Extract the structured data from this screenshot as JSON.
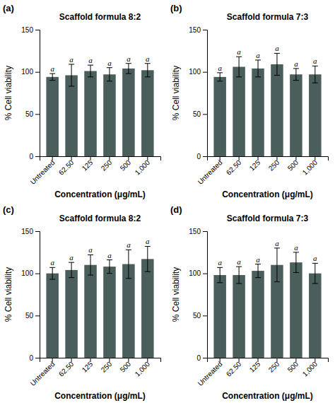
{
  "chart_data": [
    {
      "type": "bar",
      "title": "Scaffold formula 8:2",
      "categories": [
        "Untreated",
        "62.50",
        "125",
        "250",
        "500",
        "1,000"
      ],
      "values": [
        94,
        96,
        101,
        97,
        104,
        102
      ],
      "errors": [
        4,
        13,
        7,
        8,
        6,
        8
      ],
      "color": "#4a5e5c",
      "ylim": [
        0,
        150
      ],
      "yticks": [
        0,
        50,
        100,
        150
      ],
      "grid": false,
      "xlabel": "Concentration (μg/mL)",
      "ylabel": "% Cell viability",
      "annotations": [
        {
          "text": "(a)"
        },
        {
          "text": "a",
          "x": "Untreated"
        },
        {
          "text": "a",
          "x": "62.50"
        },
        {
          "text": "a",
          "x": "125"
        },
        {
          "text": "a",
          "x": "250"
        },
        {
          "text": "a",
          "x": "500"
        },
        {
          "text": "a",
          "x": "1,000"
        }
      ]
    },
    {
      "type": "bar",
      "title": "Scaffold formula 7:3",
      "categories": [
        "Untreated",
        "62.50",
        "125",
        "250",
        "500",
        "1,000"
      ],
      "values": [
        94,
        106,
        104,
        109,
        97,
        97
      ],
      "errors": [
        5,
        12,
        10,
        13,
        7,
        10
      ],
      "color": "#4a5e5c",
      "ylim": [
        0,
        150
      ],
      "yticks": [
        0,
        50,
        100,
        150
      ],
      "grid": false,
      "xlabel": "Concentration (μg/mL)",
      "ylabel": "% Cell viability",
      "annotations": [
        {
          "text": "(b)"
        },
        {
          "text": "a",
          "x": "Untreated"
        },
        {
          "text": "a",
          "x": "62.50"
        },
        {
          "text": "a",
          "x": "125"
        },
        {
          "text": "a",
          "x": "250"
        },
        {
          "text": "a",
          "x": "500"
        },
        {
          "text": "a",
          "x": "1,000"
        }
      ]
    },
    {
      "type": "bar",
      "title": "Scaffold formula 8:2",
      "categories": [
        "Untreated",
        "62.50",
        "125",
        "250",
        "500",
        "1,000"
      ],
      "values": [
        100,
        104,
        110,
        108,
        111,
        117
      ],
      "errors": [
        7,
        9,
        12,
        8,
        17,
        15
      ],
      "color": "#4a5e5c",
      "ylim": [
        0,
        150
      ],
      "yticks": [
        0,
        50,
        100,
        150
      ],
      "grid": false,
      "xlabel": "Concentration (μg/mL)",
      "ylabel": "% Cell viability",
      "annotations": [
        {
          "text": "(c)"
        },
        {
          "text": "a",
          "x": "Untreated"
        },
        {
          "text": "a",
          "x": "62.50"
        },
        {
          "text": "a",
          "x": "125"
        },
        {
          "text": "a",
          "x": "250"
        },
        {
          "text": "a",
          "x": "500"
        },
        {
          "text": "a",
          "x": "1,000"
        }
      ]
    },
    {
      "type": "bar",
      "title": "Scaffold formula 7:3",
      "categories": [
        "Untreated",
        "62.50",
        "125",
        "250",
        "500",
        "1,000"
      ],
      "values": [
        98,
        98,
        103,
        110,
        113,
        100
      ],
      "errors": [
        9,
        10,
        8,
        20,
        12,
        12
      ],
      "color": "#4a5e5c",
      "ylim": [
        0,
        150
      ],
      "yticks": [
        0,
        50,
        100,
        150
      ],
      "grid": false,
      "xlabel": "Concentration (μg/mL)",
      "ylabel": "% Cell viability",
      "annotations": [
        {
          "text": "(d)"
        },
        {
          "text": "a",
          "x": "Untreated"
        },
        {
          "text": "a",
          "x": "62.50"
        },
        {
          "text": "a",
          "x": "125"
        },
        {
          "text": "a",
          "x": "250"
        },
        {
          "text": "a",
          "x": "500"
        },
        {
          "text": "a",
          "x": "1,000"
        }
      ]
    }
  ]
}
